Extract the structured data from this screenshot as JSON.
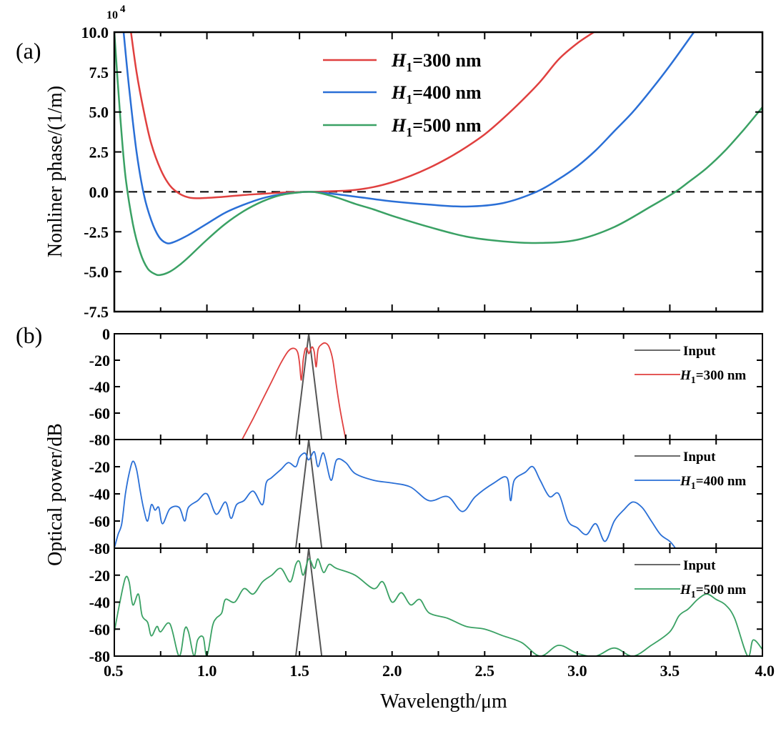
{
  "chart_data": [
    {
      "id": "a",
      "type": "line",
      "panel_label": "(a)",
      "title": "",
      "xlabel": "",
      "ylabel": "Nonliner phase/(1/m)",
      "y_multiplier": "10^4",
      "y_multiplier_base": "10",
      "y_multiplier_exp": "4",
      "xlim": [
        0.5,
        4.0
      ],
      "ylim": [
        -7.5,
        10.0
      ],
      "yticks": [
        "10.0",
        "7.5",
        "5.0",
        "2.5",
        "0.0",
        "-2.5",
        "-5.0",
        "-7.5"
      ],
      "ytick_values": [
        10.0,
        7.5,
        5.0,
        2.5,
        0.0,
        -2.5,
        -5.0,
        -7.5
      ],
      "xtick_values": [
        0.5,
        0.75,
        1.0,
        1.25,
        1.5,
        1.75,
        2.0,
        2.25,
        2.5,
        2.75,
        3.0,
        3.25,
        3.5,
        3.75,
        4.0
      ],
      "reference_line": {
        "y": 0,
        "style": "dashed",
        "color": "#000000"
      },
      "legend_position": "top-center",
      "series": [
        {
          "name": "H1=300 nm",
          "legend_italic": "H",
          "legend_sub": "1",
          "legend_rest": "=300 nm",
          "color": "#e0403f",
          "x": [
            0.59,
            0.62,
            0.66,
            0.7,
            0.75,
            0.8,
            0.85,
            0.9,
            0.95,
            1.0,
            1.1,
            1.2,
            1.3,
            1.4,
            1.5,
            1.55,
            1.6,
            1.7,
            1.8,
            1.9,
            2.0,
            2.1,
            2.2,
            2.3,
            2.4,
            2.5,
            2.6,
            2.7,
            2.8,
            2.9,
            3.0,
            3.09
          ],
          "y": [
            10.0,
            7.5,
            5.0,
            3.0,
            1.4,
            0.4,
            -0.1,
            -0.35,
            -0.4,
            -0.38,
            -0.3,
            -0.2,
            -0.12,
            -0.05,
            -0.01,
            0.0,
            0.01,
            0.05,
            0.12,
            0.3,
            0.6,
            1.0,
            1.5,
            2.1,
            2.8,
            3.6,
            4.6,
            5.7,
            6.9,
            8.3,
            9.3,
            10.0
          ]
        },
        {
          "name": "H1=400 nm",
          "legend_italic": "H",
          "legend_sub": "1",
          "legend_rest": "=400 nm",
          "color": "#2a6fd6",
          "x": [
            0.55,
            0.58,
            0.62,
            0.66,
            0.7,
            0.74,
            0.78,
            0.82,
            0.9,
            1.0,
            1.1,
            1.2,
            1.3,
            1.4,
            1.5,
            1.55,
            1.6,
            1.7,
            1.8,
            1.9,
            2.0,
            2.2,
            2.4,
            2.6,
            2.78,
            2.9,
            3.0,
            3.1,
            3.2,
            3.3,
            3.4,
            3.5,
            3.63
          ],
          "y": [
            10.0,
            6.5,
            2.5,
            -0.2,
            -1.8,
            -2.8,
            -3.2,
            -3.15,
            -2.7,
            -2.0,
            -1.3,
            -0.8,
            -0.4,
            -0.15,
            -0.03,
            0.0,
            -0.03,
            -0.15,
            -0.3,
            -0.45,
            -0.6,
            -0.8,
            -0.92,
            -0.7,
            0.0,
            0.8,
            1.6,
            2.6,
            3.8,
            5.0,
            6.4,
            7.9,
            10.0
          ]
        },
        {
          "name": "H1=500 nm",
          "legend_italic": "H",
          "legend_sub": "1",
          "legend_rest": "=500 nm",
          "color": "#3aa164",
          "x": [
            0.5,
            0.53,
            0.56,
            0.6,
            0.64,
            0.68,
            0.72,
            0.75,
            0.8,
            0.85,
            0.9,
            1.0,
            1.1,
            1.2,
            1.3,
            1.4,
            1.5,
            1.55,
            1.6,
            1.7,
            1.8,
            1.9,
            2.0,
            2.2,
            2.4,
            2.6,
            2.8,
            3.0,
            3.2,
            3.4,
            3.53,
            3.6,
            3.7,
            3.8,
            3.9,
            4.0
          ],
          "y": [
            10.0,
            5.0,
            1.0,
            -2.0,
            -3.8,
            -4.8,
            -5.15,
            -5.2,
            -5.0,
            -4.6,
            -4.1,
            -3.0,
            -2.0,
            -1.2,
            -0.6,
            -0.2,
            -0.03,
            0.0,
            -0.05,
            -0.35,
            -0.75,
            -1.1,
            -1.5,
            -2.2,
            -2.8,
            -3.1,
            -3.2,
            -3.0,
            -2.2,
            -0.9,
            0.0,
            0.6,
            1.5,
            2.6,
            3.9,
            5.3
          ]
        }
      ]
    },
    {
      "id": "b",
      "type": "line",
      "panel_label": "(b)",
      "xlabel": "Wavelength/μm",
      "ylabel": "Optical power/dB",
      "xlim": [
        0.5,
        4.0
      ],
      "xticks": [
        "0.5",
        "1.0",
        "1.5",
        "2.0",
        "2.5",
        "3.0",
        "3.5",
        "4.0"
      ],
      "xtick_values": [
        0.5,
        1.0,
        1.5,
        2.0,
        2.5,
        3.0,
        3.5,
        4.0
      ],
      "minor_xtick_values": [
        0.75,
        1.25,
        1.75,
        2.25,
        2.75,
        3.25,
        3.75
      ],
      "subplots": [
        {
          "ylim": [
            -80,
            0
          ],
          "yticks": [
            "0",
            "-20",
            "-40",
            "-60",
            "-80"
          ],
          "ytick_values": [
            0,
            -20,
            -40,
            -60,
            -80
          ],
          "legend_position": "top-right",
          "input": {
            "name": "Input",
            "color": "#555555",
            "x": [
              1.48,
              1.55,
              1.62
            ],
            "y": [
              -80,
              0,
              -80
            ]
          },
          "series": {
            "name": "H1=300 nm",
            "legend_italic": "H",
            "legend_sub": "1",
            "legend_rest": "=300 nm",
            "color": "#e0403f",
            "x": [
              1.19,
              1.25,
              1.3,
              1.35,
              1.4,
              1.44,
              1.47,
              1.49,
              1.5,
              1.51,
              1.52,
              1.53,
              1.54,
              1.55,
              1.56,
              1.57,
              1.58,
              1.59,
              1.6,
              1.62,
              1.64,
              1.66,
              1.68,
              1.7,
              1.72,
              1.75
            ],
            "y": [
              -80,
              -64,
              -50,
              -36,
              -22,
              -13,
              -11,
              -14,
              -22,
              -35,
              -20,
              -12,
              -11,
              -15,
              -12,
              -10,
              -14,
              -25,
              -12,
              -8,
              -7,
              -10,
              -20,
              -40,
              -58,
              -80
            ]
          }
        },
        {
          "ylim": [
            -80,
            0
          ],
          "yticks": [
            "-20",
            "-40",
            "-60",
            "-80"
          ],
          "ytick_values": [
            -20,
            -40,
            -60,
            -80
          ],
          "legend_position": "top-right",
          "input": {
            "name": "Input",
            "color": "#555555",
            "x": [
              1.48,
              1.55,
              1.62
            ],
            "y": [
              -80,
              0,
              -80
            ]
          },
          "series": {
            "name": "H1=400 nm",
            "legend_italic": "H",
            "legend_sub": "1",
            "legend_rest": "=400 nm",
            "color": "#2a6fd6",
            "x": [
              0.5,
              0.52,
              0.54,
              0.56,
              0.58,
              0.6,
              0.62,
              0.64,
              0.66,
              0.68,
              0.7,
              0.72,
              0.74,
              0.76,
              0.8,
              0.85,
              0.88,
              0.9,
              0.95,
              1.0,
              1.05,
              1.1,
              1.13,
              1.16,
              1.2,
              1.25,
              1.3,
              1.32,
              1.35,
              1.4,
              1.44,
              1.48,
              1.5,
              1.53,
              1.55,
              1.58,
              1.6,
              1.63,
              1.67,
              1.7,
              1.75,
              1.8,
              1.9,
              2.0,
              2.1,
              2.2,
              2.3,
              2.38,
              2.45,
              2.55,
              2.62,
              2.64,
              2.66,
              2.72,
              2.76,
              2.8,
              2.85,
              2.9,
              2.95,
              3.0,
              3.05,
              3.1,
              3.15,
              3.2,
              3.25,
              3.3,
              3.35,
              3.4,
              3.45,
              3.5,
              3.53
            ],
            "y": [
              -80,
              -70,
              -62,
              -40,
              -25,
              -16,
              -22,
              -38,
              -52,
              -60,
              -48,
              -52,
              -50,
              -62,
              -51,
              -50,
              -60,
              -50,
              -45,
              -40,
              -55,
              -46,
              -58,
              -48,
              -45,
              -38,
              -48,
              -32,
              -28,
              -22,
              -17,
              -20,
              -13,
              -10,
              -15,
              -9,
              -20,
              -10,
              -30,
              -15,
              -17,
              -25,
              -30,
              -32,
              -35,
              -45,
              -42,
              -53,
              -42,
              -32,
              -28,
              -45,
              -30,
              -24,
              -20,
              -30,
              -42,
              -40,
              -60,
              -65,
              -70,
              -62,
              -75,
              -60,
              -52,
              -46,
              -50,
              -60,
              -70,
              -75,
              -80
            ]
          }
        },
        {
          "ylim": [
            -80,
            0
          ],
          "yticks": [
            "-20",
            "-40",
            "-60",
            "-80"
          ],
          "ytick_values": [
            -20,
            -40,
            -60,
            -80
          ],
          "legend_position": "top-right",
          "input": {
            "name": "Input",
            "color": "#555555",
            "x": [
              1.48,
              1.55,
              1.62
            ],
            "y": [
              -80,
              0,
              -80
            ]
          },
          "series": {
            "name": "H1=500 nm",
            "legend_italic": "H",
            "legend_sub": "1",
            "legend_rest": "=500 nm",
            "color": "#3aa164",
            "x": [
              0.5,
              0.53,
              0.56,
              0.58,
              0.6,
              0.63,
              0.65,
              0.68,
              0.7,
              0.73,
              0.75,
              0.8,
              0.85,
              0.88,
              0.9,
              0.93,
              0.95,
              0.98,
              1.0,
              1.03,
              1.05,
              1.08,
              1.1,
              1.15,
              1.2,
              1.25,
              1.3,
              1.35,
              1.4,
              1.45,
              1.48,
              1.5,
              1.52,
              1.55,
              1.58,
              1.6,
              1.63,
              1.66,
              1.7,
              1.8,
              1.9,
              1.95,
              2.0,
              2.05,
              2.1,
              2.15,
              2.2,
              2.3,
              2.4,
              2.5,
              2.6,
              2.7,
              2.8,
              2.9,
              3.0,
              3.1,
              3.2,
              3.3,
              3.4,
              3.5,
              3.55,
              3.6,
              3.65,
              3.7,
              3.75,
              3.8,
              3.85,
              3.92,
              3.95,
              4.0
            ],
            "y": [
              -62,
              -40,
              -22,
              -25,
              -42,
              -34,
              -50,
              -55,
              -65,
              -58,
              -62,
              -56,
              -80,
              -60,
              -62,
              -80,
              -68,
              -66,
              -80,
              -58,
              -52,
              -48,
              -38,
              -40,
              -30,
              -34,
              -25,
              -20,
              -15,
              -25,
              -12,
              -10,
              -20,
              -8,
              -15,
              -8,
              -18,
              -12,
              -15,
              -20,
              -30,
              -25,
              -40,
              -33,
              -42,
              -38,
              -48,
              -52,
              -58,
              -60,
              -65,
              -70,
              -80,
              -72,
              -78,
              -80,
              -74,
              -80,
              -72,
              -62,
              -50,
              -45,
              -38,
              -34,
              -38,
              -42,
              -52,
              -80,
              -68,
              -75
            ]
          }
        }
      ]
    }
  ]
}
